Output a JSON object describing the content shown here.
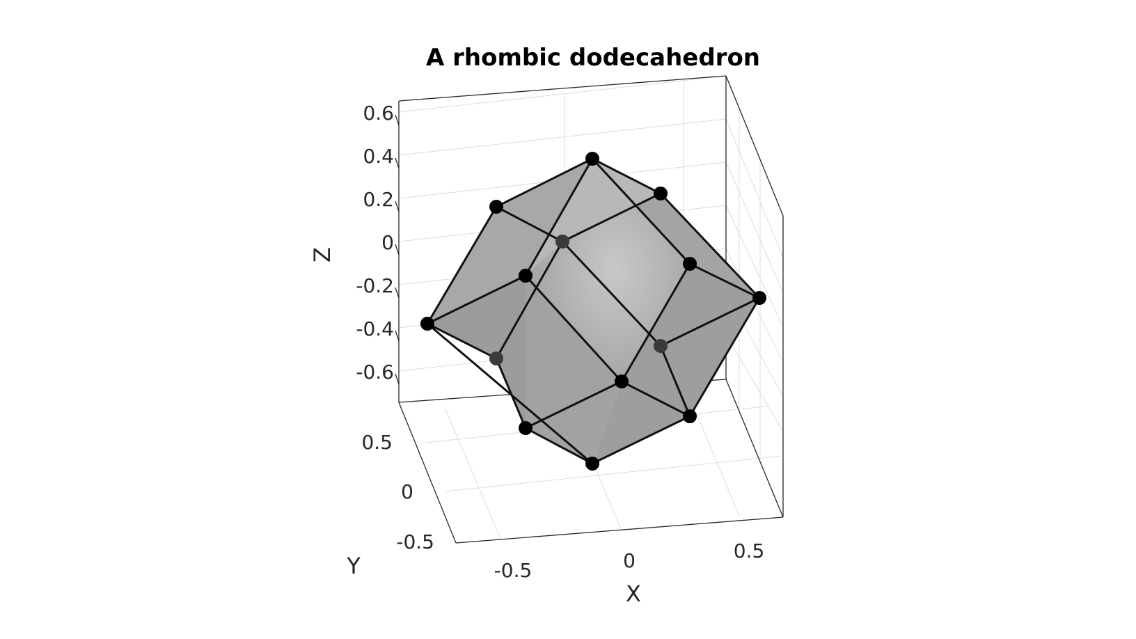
{
  "title": "A rhombic dodecahedron",
  "axes": {
    "x_label": "X",
    "y_label": "Y",
    "z_label": "Z",
    "x_ticks": [
      "-0.5",
      "0",
      "0.5"
    ],
    "y_ticks": [
      "0.5",
      "0",
      "-0.5"
    ],
    "z_ticks": [
      "0.6",
      "0.4",
      "0.2",
      "0",
      "-0.2",
      "-0.4",
      "-0.6"
    ],
    "grid": true
  },
  "shape": {
    "name": "rhombic dodecahedron",
    "vertex_count": 14,
    "face_color": "#a6a6a6",
    "edge_color": "#111111",
    "vertex_color": "#000000"
  }
}
